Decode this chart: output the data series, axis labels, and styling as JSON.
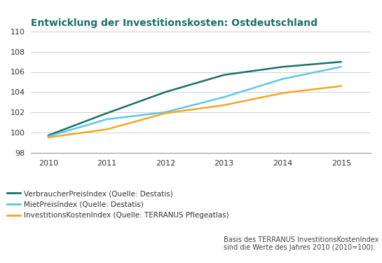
{
  "title": "Entwicklung der Investitionskosten: Ostdeutschland",
  "years": [
    2010,
    2011,
    2012,
    2013,
    2014,
    2015
  ],
  "verbraucher": [
    99.7,
    101.9,
    104.0,
    105.7,
    106.5,
    107.0
  ],
  "miet": [
    99.6,
    101.3,
    102.0,
    103.5,
    105.3,
    106.5
  ],
  "investitions": [
    99.5,
    100.3,
    101.9,
    102.7,
    103.9,
    104.6
  ],
  "color_verbraucher": "#1a7068",
  "color_miet": "#5bc8e8",
  "color_investitions": "#f5a623",
  "title_color": "#1a7068",
  "ylim": [
    98,
    110
  ],
  "yticks": [
    98,
    100,
    102,
    104,
    106,
    108,
    110
  ],
  "legend_verbraucher": "VerbraucherPreisIndex (Quelle: Destatis)",
  "legend_miet": "MietPreisIndex (Quelle: Destatis)",
  "legend_investitions": "InvestitionsKostenIndex (Quelle: TERRANUS Pflegeatlas)",
  "footnote_line1": "Basis des TERRANUS InvestitionsKostenIndex",
  "footnote_line2": "sind die Werte des Jahres 2010 (2010=100).",
  "background_color": "#ffffff",
  "grid_color": "#c8c8c8",
  "line_width": 1.8
}
